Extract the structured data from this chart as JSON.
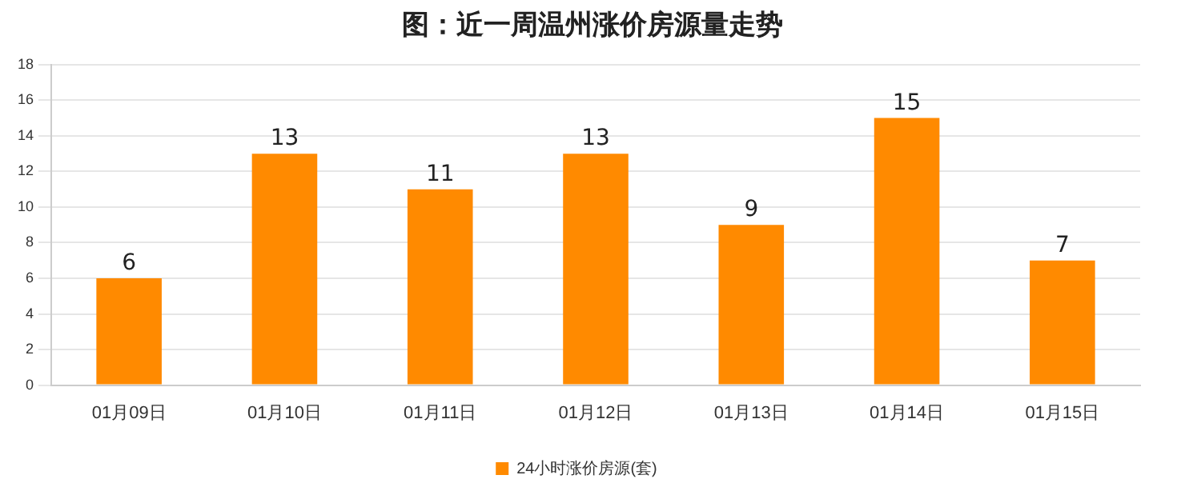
{
  "chart_data": {
    "type": "bar",
    "title": "图：近一周温州涨价房源量走势",
    "categories": [
      "01月09日",
      "01月10日",
      "01月11日",
      "01月12日",
      "01月13日",
      "01月14日",
      "01月15日"
    ],
    "series": [
      {
        "name": "24小时涨价房源(套)",
        "color": "#ff8a00",
        "values": [
          6,
          13,
          11,
          13,
          9,
          15,
          7
        ]
      }
    ],
    "ylim": [
      0,
      18
    ],
    "yticks": [
      0,
      2,
      4,
      6,
      8,
      10,
      12,
      14,
      16,
      18
    ],
    "grid": "y",
    "legend": "bottom",
    "data_labels": true
  }
}
